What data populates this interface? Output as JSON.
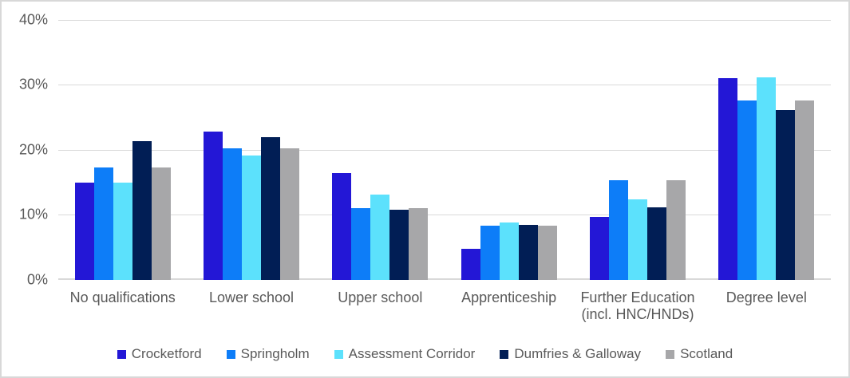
{
  "chart_data": {
    "type": "bar",
    "title": "",
    "xlabel": "",
    "ylabel": "",
    "ylim": [
      0,
      40
    ],
    "y_ticks": [
      "0%",
      "10%",
      "20%",
      "30%",
      "40%"
    ],
    "grid": true,
    "legend_position": "bottom",
    "categories": [
      "No qualifications",
      "Lower school",
      "Upper school",
      "Apprenticeship",
      "Further Education\n(incl. HNC/HNDs)",
      "Degree level"
    ],
    "series": [
      {
        "name": "Crocketford",
        "color": "#2317d6",
        "values": [
          15.0,
          22.8,
          16.4,
          4.8,
          9.7,
          31.1
        ]
      },
      {
        "name": "Springholm",
        "color": "#0d7df8",
        "values": [
          17.3,
          20.2,
          11.1,
          8.4,
          15.3,
          27.6
        ]
      },
      {
        "name": "Assessment Corridor",
        "color": "#5ce1fc",
        "values": [
          15.0,
          19.2,
          13.1,
          8.8,
          12.4,
          31.2
        ]
      },
      {
        "name": "Dumfries & Galloway",
        "color": "#011e55",
        "values": [
          21.3,
          22.0,
          10.8,
          8.5,
          11.2,
          26.1
        ]
      },
      {
        "name": "Scotland",
        "color": "#a7a7a9",
        "values": [
          17.3,
          20.2,
          11.1,
          8.4,
          15.3,
          27.6
        ]
      }
    ]
  },
  "colors": {
    "gridline": "#d9d9d9",
    "axis_text": "#595959",
    "frame_border": "#d8d8d8",
    "background": "#ffffff"
  }
}
